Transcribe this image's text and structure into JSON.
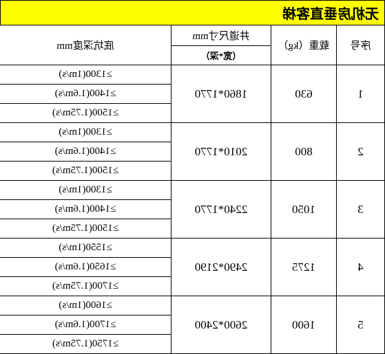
{
  "title": "无机房垂直客梯",
  "headers": {
    "seq": "序号",
    "weight": "载重（kg）",
    "size": "井道尺寸mm",
    "sizeSubtitle": "（宽*深）",
    "depth": "底坑深度mm"
  },
  "rows": [
    {
      "seq": "1",
      "weight": "630",
      "size": "1860*1770",
      "depths": [
        "≥1300(1m/s)",
        "≥1400(1.6m/s)",
        "≥1500(1.75m/s)"
      ]
    },
    {
      "seq": "2",
      "weight": "800",
      "size": "2010*1770",
      "depths": [
        "≥1300(1m/s)",
        "≥1400(1.6m/s)",
        "≥1500(1.75m/s)"
      ]
    },
    {
      "seq": "3",
      "weight": "1050",
      "size": "2240*1770",
      "depths": [
        "≥1300(1m/s)",
        "≥1400(1.6m/s)",
        "≥1500(1.75m/s)"
      ]
    },
    {
      "seq": "4",
      "weight": "1275",
      "size": "2490*2190",
      "depths": [
        "≥1550(1m/s)",
        "≥1650(1.6m/s)",
        "≥1700(1.75m/s)"
      ]
    },
    {
      "seq": "5",
      "weight": "1600",
      "size": "2600*2400",
      "depths": [
        "≥1600(1m/s)",
        "≥1700(1.6m/s)",
        "≥1750(1.75m/s)"
      ]
    }
  ],
  "styling": {
    "titleBackground": "#ffff00",
    "borderColor": "#000000",
    "textColor": "#000000",
    "backgroundColor": "#ffffff"
  }
}
